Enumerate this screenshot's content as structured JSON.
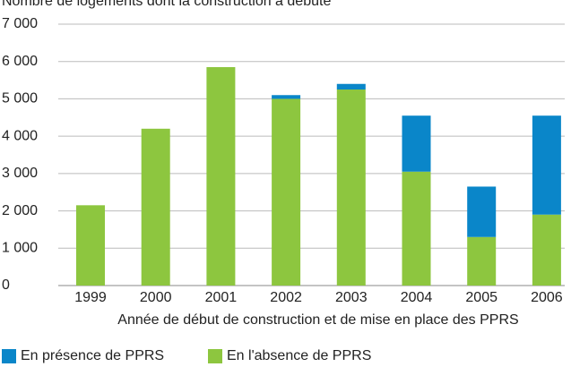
{
  "chart_data": {
    "type": "stacked_bar",
    "title": "Nombre de logements dont la construction a débuté",
    "x_label": "Année de début de construction et de mise en place des PPRS",
    "categories": [
      "1999",
      "2000",
      "2001",
      "2002",
      "2003",
      "2004",
      "2005",
      "2006"
    ],
    "series": [
      {
        "name": "En présence de PPRS",
        "color": "#0a86c9",
        "values": [
          0,
          0,
          0,
          100,
          150,
          1500,
          1350,
          2650
        ]
      },
      {
        "name": "En l'absence de PPRS",
        "color": "#8dc63f",
        "values": [
          2150,
          4200,
          5850,
          5000,
          5250,
          3050,
          1300,
          1900
        ]
      }
    ],
    "ylim": [
      0,
      7000
    ],
    "yticks": [
      0,
      {
        "value": 1000,
        "label": "1 000"
      },
      {
        "value": 2000,
        "label": "2 000"
      },
      {
        "value": 3000,
        "label": "3 000"
      },
      {
        "value": 4000,
        "label": "4 000"
      },
      {
        "value": 5000,
        "label": "5 000"
      },
      {
        "value": 6000,
        "label": "6 000"
      },
      {
        "value": 7000,
        "label": "7 000"
      }
    ],
    "grid": true,
    "legend": "bottom"
  }
}
